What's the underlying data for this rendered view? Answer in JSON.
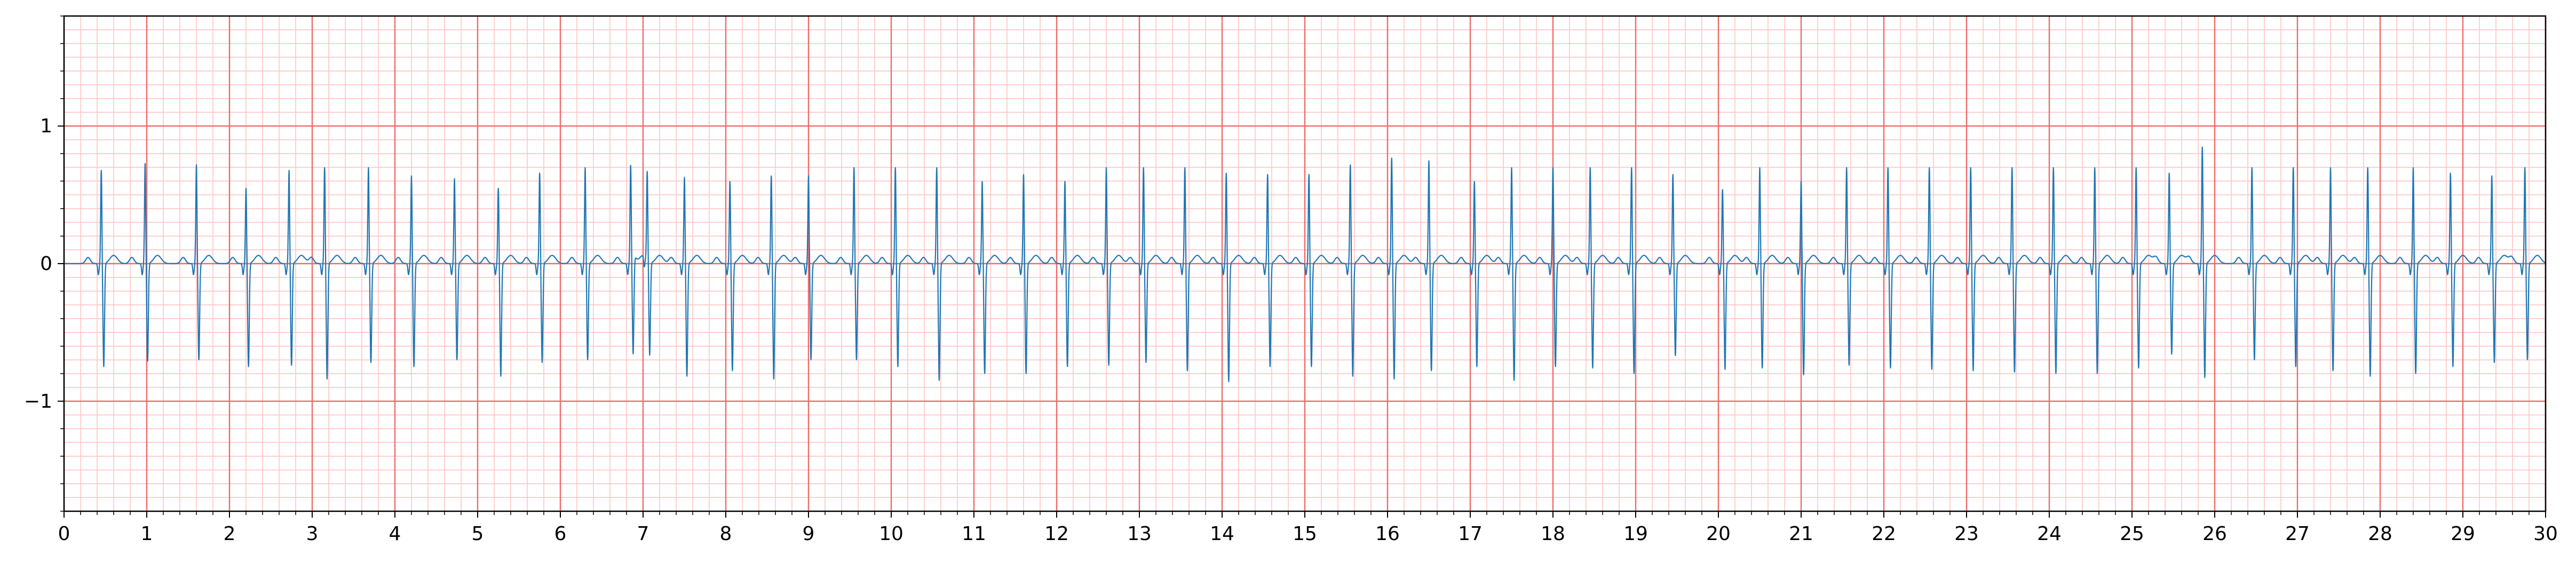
{
  "chart_data": {
    "type": "line",
    "title": "",
    "xlabel": "",
    "ylabel": "",
    "xlim": [
      0,
      30
    ],
    "ylim": [
      -1.8,
      1.8
    ],
    "x_ticks": [
      0,
      1,
      2,
      3,
      4,
      5,
      6,
      7,
      8,
      9,
      10,
      11,
      12,
      13,
      14,
      15,
      16,
      17,
      18,
      19,
      20,
      21,
      22,
      23,
      24,
      25,
      26,
      27,
      28,
      29,
      30
    ],
    "x_tick_labels": [
      "0",
      "1",
      "2",
      "3",
      "4",
      "5",
      "6",
      "7",
      "8",
      "9",
      "10",
      "11",
      "12",
      "13",
      "14",
      "15",
      "16",
      "17",
      "18",
      "19",
      "20",
      "21",
      "22",
      "23",
      "24",
      "25",
      "26",
      "27",
      "28",
      "29",
      "30"
    ],
    "y_ticks": [
      -1,
      0,
      1
    ],
    "y_tick_labels": [
      "−1",
      "0",
      "1"
    ],
    "grid": {
      "major": true,
      "minor": true,
      "major_x_step": 1,
      "minor_x_step": 0.2,
      "major_y_step": 1,
      "minor_y_step": 0.1,
      "major_color": "#f06a6a",
      "minor_color": "#ffc4c4"
    },
    "line_color": "#1f77b4",
    "series": [
      {
        "r_peak_times_s": [
          0.45,
          0.98,
          1.6,
          2.2,
          2.72,
          3.15,
          3.68,
          4.2,
          4.72,
          5.25,
          5.75,
          6.3,
          6.85,
          7.05,
          7.5,
          8.05,
          8.55,
          9.0,
          9.55,
          10.05,
          10.55,
          11.1,
          11.6,
          12.1,
          12.6,
          13.05,
          13.55,
          14.05,
          14.55,
          15.05,
          15.55,
          16.05,
          16.5,
          17.05,
          17.5,
          18.0,
          18.45,
          18.95,
          19.45,
          20.05,
          20.5,
          21.0,
          21.55,
          22.05,
          22.55,
          23.05,
          23.55,
          24.05,
          24.55,
          25.05,
          25.45,
          25.85,
          26.45,
          26.95,
          27.4,
          27.85,
          28.4,
          28.85,
          29.35,
          29.75
        ],
        "r_peak_values": [
          0.68,
          0.73,
          0.72,
          0.55,
          0.68,
          0.7,
          0.7,
          0.64,
          0.62,
          0.55,
          0.66,
          0.7,
          0.7,
          0.64,
          0.63,
          0.6,
          0.64,
          0.64,
          0.7,
          0.7,
          0.7,
          0.6,
          0.65,
          0.6,
          0.7,
          0.7,
          0.7,
          0.66,
          0.65,
          0.65,
          0.72,
          0.77,
          0.75,
          0.6,
          0.7,
          0.7,
          0.7,
          0.7,
          0.65,
          0.54,
          0.7,
          0.6,
          0.7,
          0.7,
          0.7,
          0.7,
          0.7,
          0.7,
          0.7,
          0.7,
          0.66,
          0.85,
          0.7,
          0.7,
          0.7,
          0.7,
          0.7,
          0.66,
          0.64,
          0.7
        ],
        "s_trough_values": [
          -0.75,
          -0.71,
          -0.7,
          -0.75,
          -0.74,
          -0.84,
          -0.72,
          -0.75,
          -0.7,
          -0.82,
          -0.72,
          -0.7,
          -0.7,
          -0.68,
          -0.82,
          -0.78,
          -0.84,
          -0.7,
          -0.7,
          -0.75,
          -0.85,
          -0.8,
          -0.8,
          -0.75,
          -0.74,
          -0.72,
          -0.78,
          -0.86,
          -0.75,
          -0.75,
          -0.82,
          -0.84,
          -0.78,
          -0.75,
          -0.85,
          -0.75,
          -0.76,
          -0.8,
          -0.67,
          -0.77,
          -0.76,
          -0.81,
          -0.74,
          -0.76,
          -0.77,
          -0.78,
          -0.79,
          -0.8,
          -0.8,
          -0.76,
          -0.66,
          -0.83,
          -0.7,
          -0.75,
          -0.78,
          -0.82,
          -0.8,
          -0.75,
          -0.72,
          -0.7
        ]
      }
    ]
  }
}
